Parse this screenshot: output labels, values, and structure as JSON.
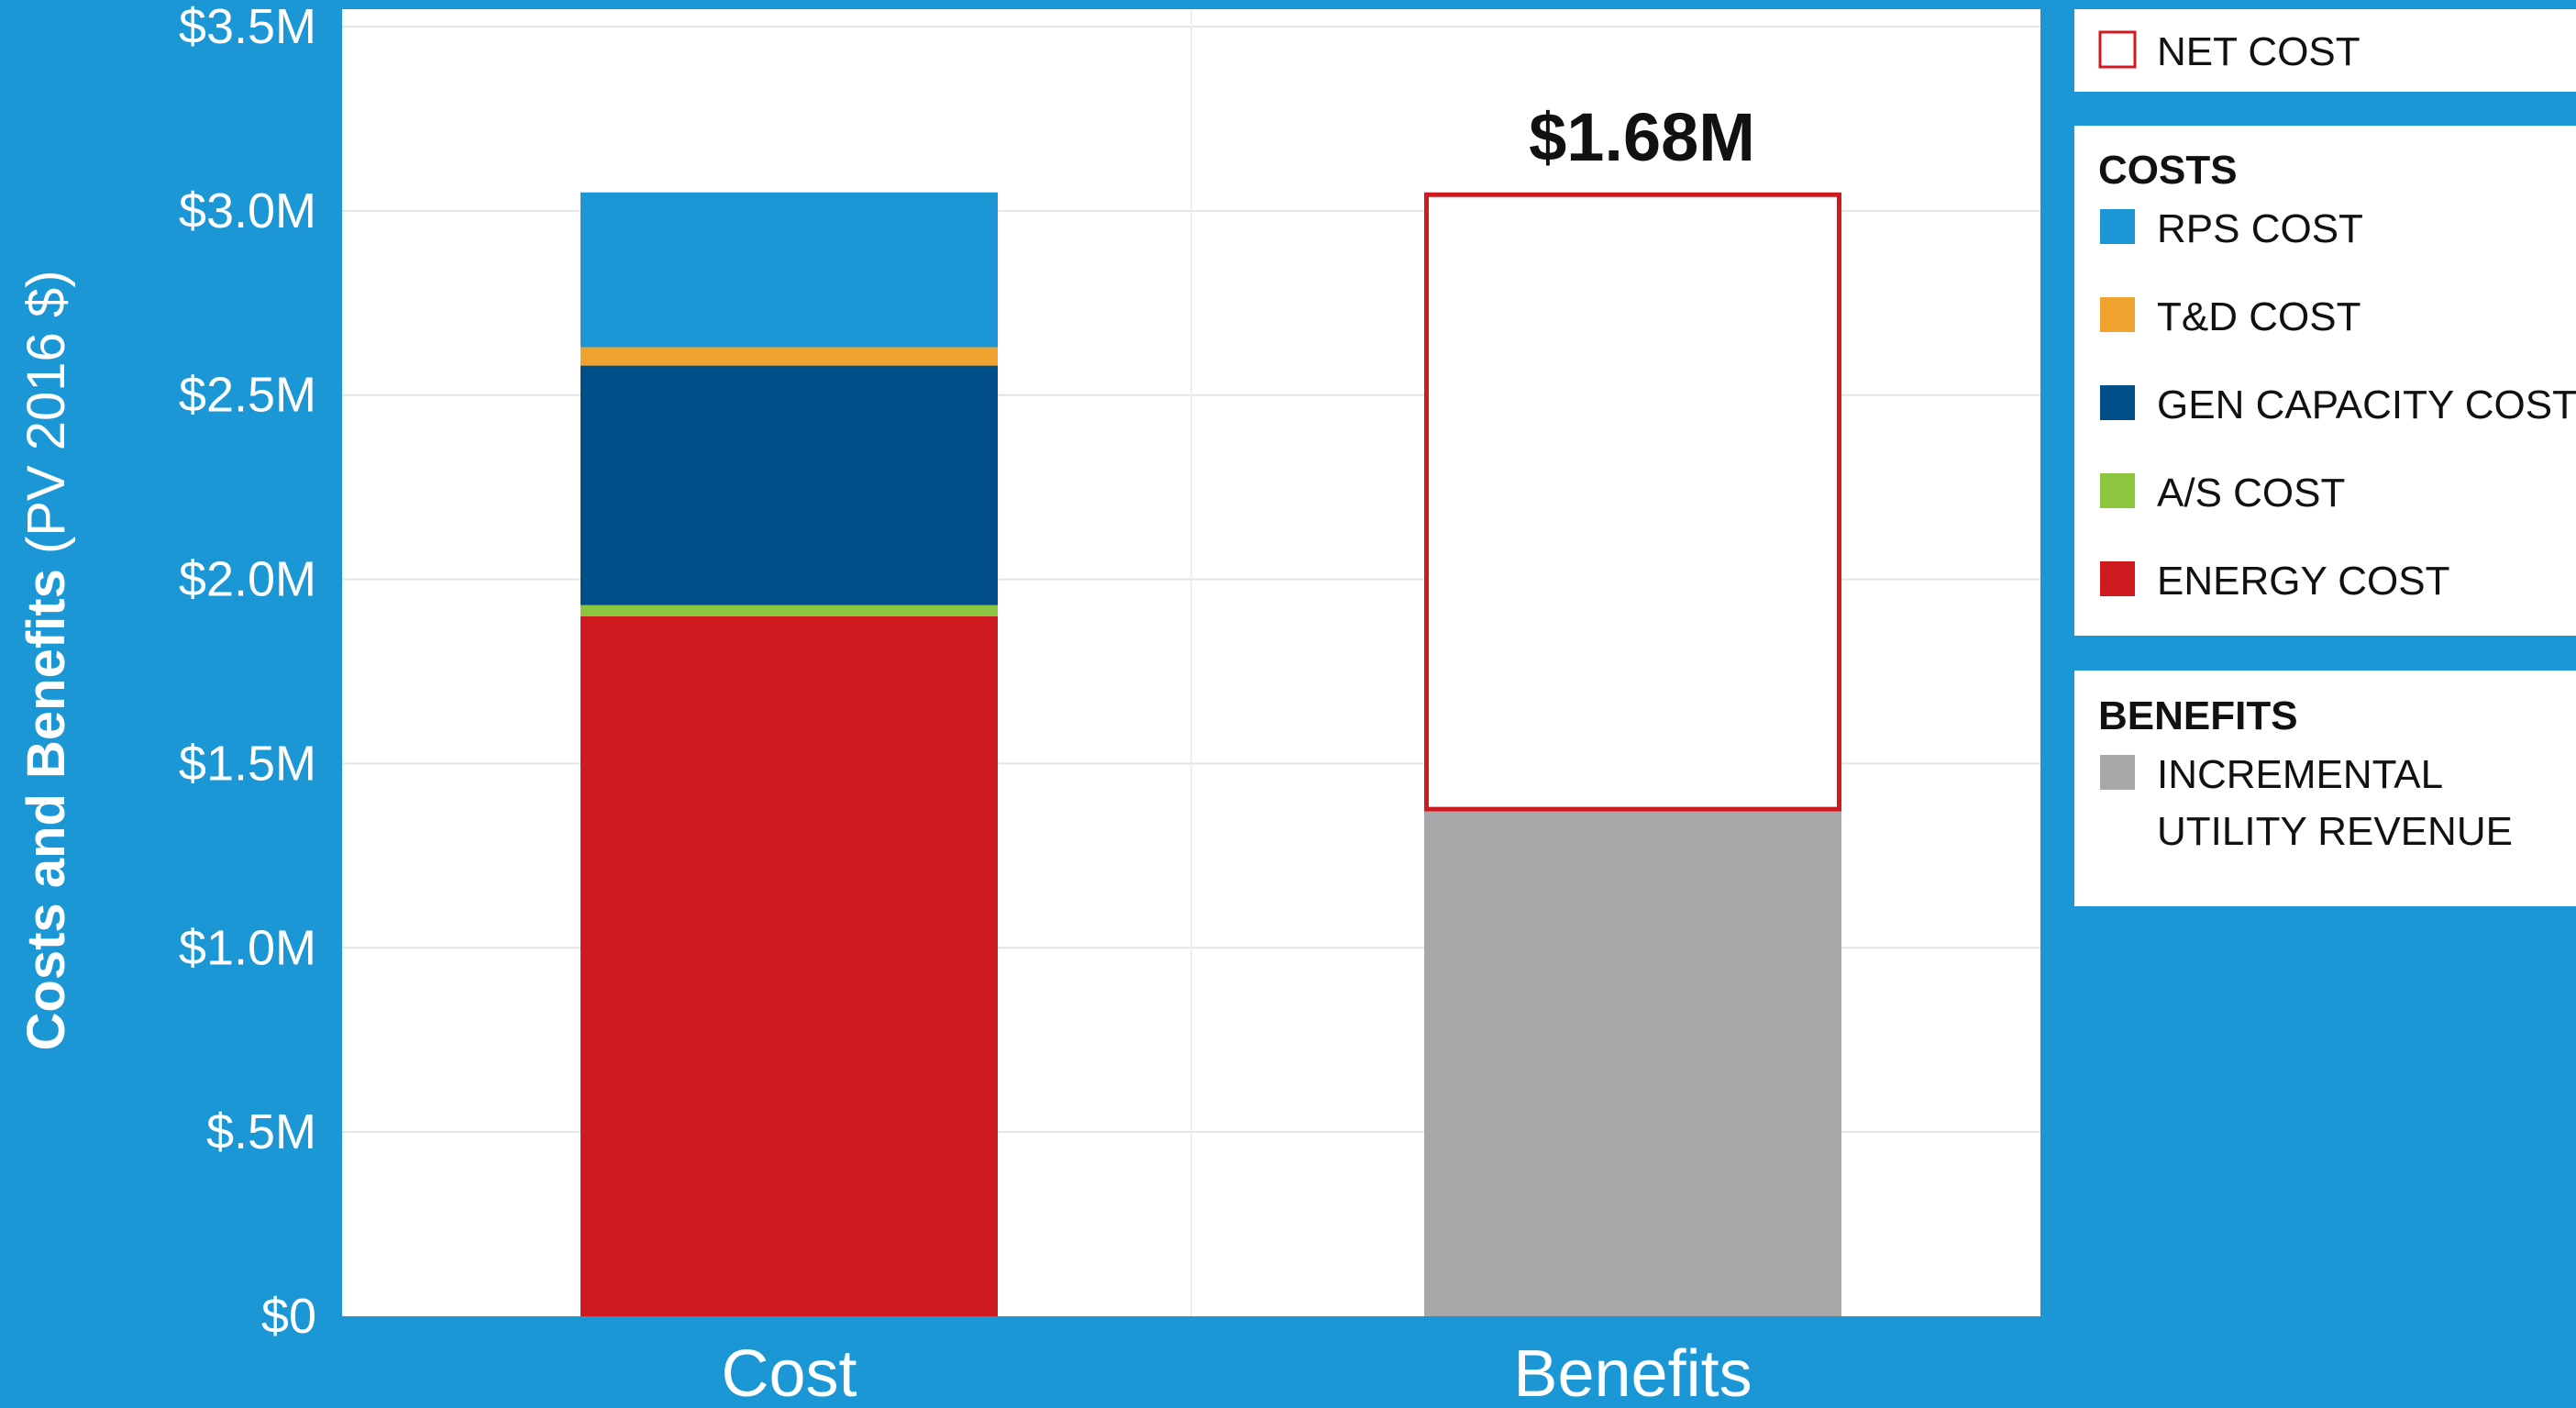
{
  "chart_data": {
    "type": "bar",
    "stacked": true,
    "categories": [
      "Cost",
      "Benefits"
    ],
    "ylabel_bold": "Costs and Benefits",
    "ylabel_rest": " (PV 2016 $)",
    "ylim": [
      0,
      3.5
    ],
    "yticks": [
      {
        "value": 0,
        "label": "$0"
      },
      {
        "value": 0.5,
        "label": "$.5M"
      },
      {
        "value": 1.0,
        "label": "$1.0M"
      },
      {
        "value": 1.5,
        "label": "$1.5M"
      },
      {
        "value": 2.0,
        "label": "$2.0M"
      },
      {
        "value": 2.5,
        "label": "$2.5M"
      },
      {
        "value": 3.0,
        "label": "$3.0M"
      },
      {
        "value": 3.5,
        "label": "$3.5M"
      }
    ],
    "grid": true,
    "series": [
      {
        "name": "ENERGY COST",
        "values": [
          1.9,
          0
        ],
        "color": "#cf1a1f"
      },
      {
        "name": "A/S COST",
        "values": [
          0.03,
          0
        ],
        "color": "#8cc63f"
      },
      {
        "name": "GEN CAPACITY COST",
        "values": [
          0.65,
          0
        ],
        "color": "#004f88"
      },
      {
        "name": "T&D COST",
        "values": [
          0.05,
          0
        ],
        "color": "#f0a22e"
      },
      {
        "name": "RPS COST",
        "values": [
          0.42,
          0
        ],
        "color": "#1b97d6"
      },
      {
        "name": "INCREMENTAL UTILITY REVENUE",
        "values": [
          0,
          1.37
        ],
        "color": "#a7a8aa"
      },
      {
        "name": "NET COST",
        "values": [
          0,
          1.68
        ],
        "color": "#ffffff",
        "outline": "#cf1a1f"
      }
    ],
    "annotations": [
      {
        "category": "Benefits",
        "text": "$1.68M"
      }
    ],
    "legend": {
      "placement": "right",
      "net": {
        "label": "NET COST"
      },
      "costs": {
        "heading": "COSTS",
        "items": [
          "RPS COST",
          "T&D COST",
          "GEN CAPACITY COST",
          "A/S COST",
          "ENERGY COST"
        ]
      },
      "benefits": {
        "heading": "BENEFITS",
        "items": [
          [
            "INCREMENTAL",
            "UTILITY REVENUE"
          ]
        ]
      }
    }
  }
}
